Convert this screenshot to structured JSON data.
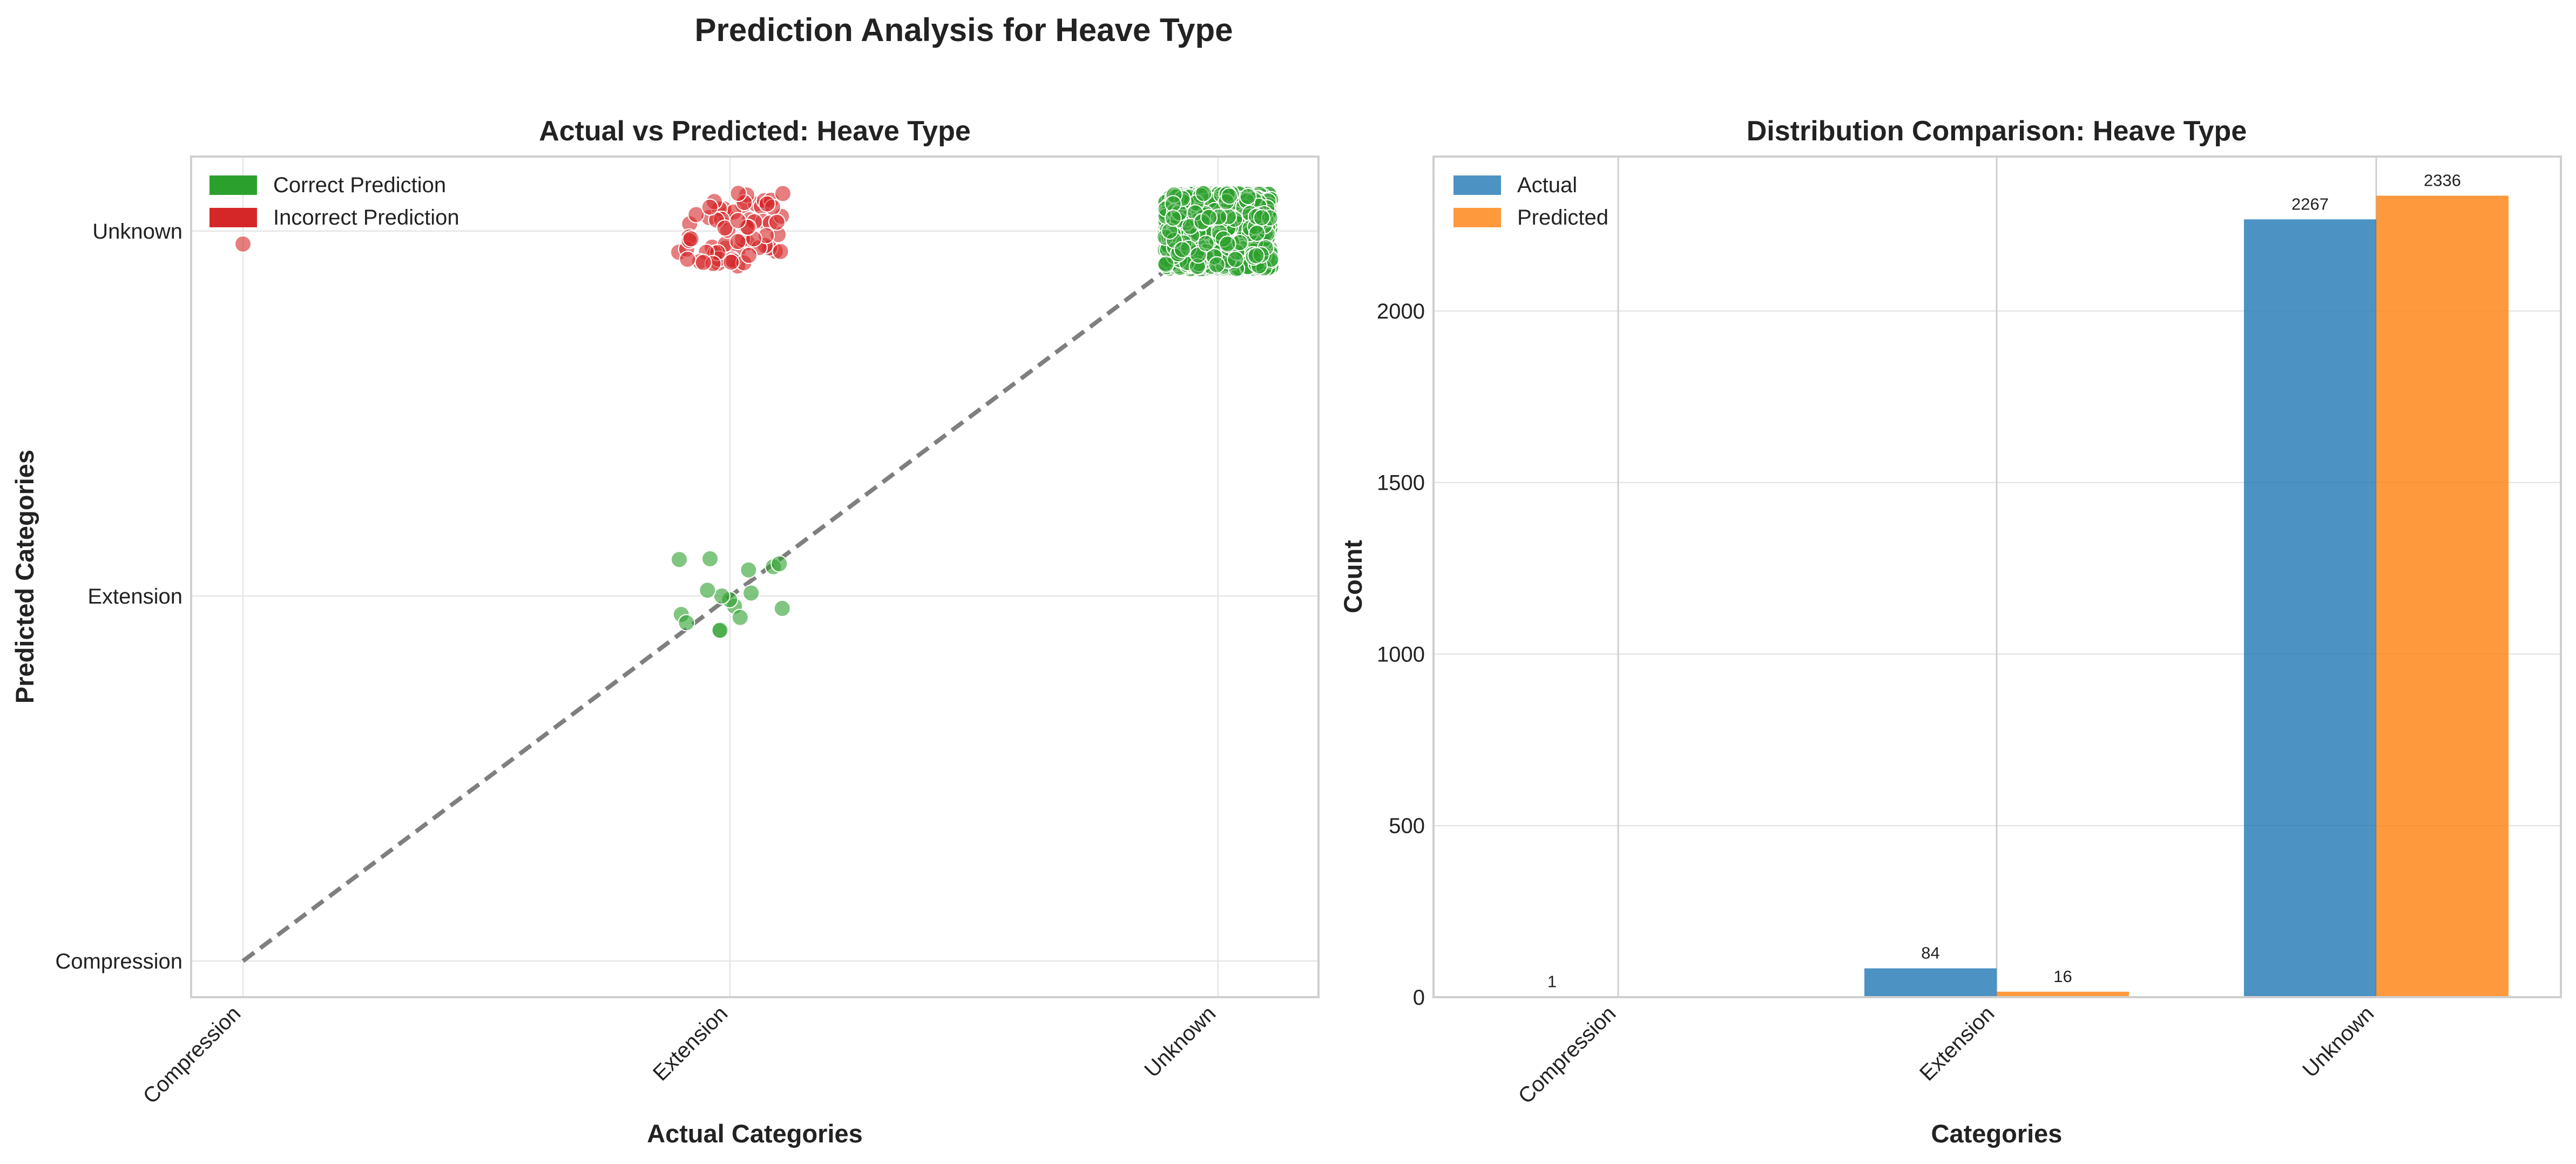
{
  "figure": {
    "title": "Prediction Analysis for  Heave Type"
  },
  "colors": {
    "correct": "#2ca02c",
    "incorrect": "#d62728",
    "actual": "#1f77b4",
    "predicted": "#ff7f0e",
    "diagonal": "#7f7f7f"
  },
  "chart_data": [
    {
      "type": "scatter",
      "title": "Actual vs Predicted:  Heave Type",
      "xlabel": "Actual Categories",
      "ylabel": "Predicted Categories",
      "categories": [
        "Compression",
        "Extension",
        "Unknown"
      ],
      "legend": {
        "placement": "top-left",
        "items": [
          {
            "label": "Correct Prediction",
            "color_key": "correct"
          },
          {
            "label": "Incorrect Prediction",
            "color_key": "incorrect"
          }
        ]
      },
      "grid": true,
      "diagonal": {
        "style": "dashed",
        "from": "Compression",
        "to": "Unknown"
      },
      "groups": [
        {
          "actual": "Compression",
          "predicted": "Unknown",
          "count": 1,
          "status": "incorrect"
        },
        {
          "actual": "Extension",
          "predicted": "Extension",
          "count": 16,
          "status": "correct"
        },
        {
          "actual": "Extension",
          "predicted": "Unknown",
          "count": 68,
          "status": "incorrect"
        },
        {
          "actual": "Unknown",
          "predicted": "Unknown",
          "count": 2267,
          "status": "correct"
        }
      ]
    },
    {
      "type": "bar",
      "title": "Distribution Comparison:  Heave Type",
      "xlabel": "Categories",
      "ylabel": "Count",
      "categories": [
        "Compression",
        "Extension",
        "Unknown"
      ],
      "ylim": [
        0,
        2450
      ],
      "yticks": [
        0,
        500,
        1000,
        1500,
        2000
      ],
      "grid": true,
      "legend": {
        "placement": "top-left"
      },
      "series": [
        {
          "name": "Actual",
          "color_key": "actual",
          "values": [
            1,
            84,
            2267
          ]
        },
        {
          "name": "Predicted",
          "color_key": "predicted",
          "values": [
            0,
            16,
            2336
          ]
        }
      ],
      "bar_labels": [
        [
          "1",
          "84",
          "2267"
        ],
        [
          "",
          "16",
          "2336"
        ]
      ]
    }
  ]
}
